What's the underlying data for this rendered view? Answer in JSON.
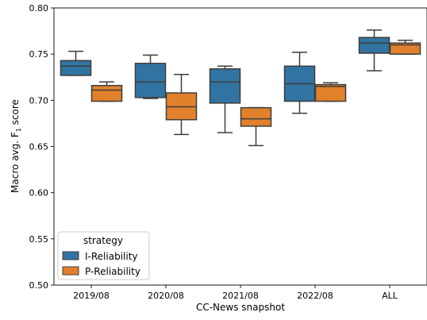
{
  "chart_data": {
    "type": "box",
    "xlabel": "CC-News snapshot",
    "ylabel": "Macro avg. F",
    "ylabel_sub": "1",
    "ylabel_tail": " score",
    "ylim": [
      0.5,
      0.8
    ],
    "yticks": [
      "0.50",
      "0.55",
      "0.60",
      "0.65",
      "0.70",
      "0.75",
      "0.80"
    ],
    "categories": [
      "2019/08",
      "2020/08",
      "2021/08",
      "2022/08",
      "ALL"
    ],
    "legend": {
      "title": "strategy",
      "placement": "lower-left"
    },
    "grid": false,
    "series": [
      {
        "name": "I-Reliability",
        "color": "#3274a1",
        "boxes": [
          {
            "whislo": 0.727,
            "q1": 0.727,
            "med": 0.737,
            "q3": 0.743,
            "whishi": 0.753
          },
          {
            "whislo": 0.702,
            "q1": 0.703,
            "med": 0.72,
            "q3": 0.74,
            "whishi": 0.749
          },
          {
            "whislo": 0.665,
            "q1": 0.697,
            "med": 0.72,
            "q3": 0.734,
            "whishi": 0.737
          },
          {
            "whislo": 0.686,
            "q1": 0.699,
            "med": 0.718,
            "q3": 0.737,
            "whishi": 0.752
          },
          {
            "whislo": 0.732,
            "q1": 0.751,
            "med": 0.762,
            "q3": 0.768,
            "whishi": 0.776
          }
        ]
      },
      {
        "name": "P-Reliability",
        "color": "#e1812c",
        "boxes": [
          {
            "whislo": 0.699,
            "q1": 0.699,
            "med": 0.711,
            "q3": 0.716,
            "whishi": 0.72
          },
          {
            "whislo": 0.663,
            "q1": 0.679,
            "med": 0.693,
            "q3": 0.708,
            "whishi": 0.728
          },
          {
            "whislo": 0.651,
            "q1": 0.672,
            "med": 0.68,
            "q3": 0.692,
            "whishi": 0.692
          },
          {
            "whislo": 0.699,
            "q1": 0.699,
            "med": 0.715,
            "q3": 0.717,
            "whishi": 0.719
          },
          {
            "whislo": 0.75,
            "q1": 0.75,
            "med": 0.76,
            "q3": 0.762,
            "whishi": 0.765
          }
        ]
      }
    ]
  }
}
